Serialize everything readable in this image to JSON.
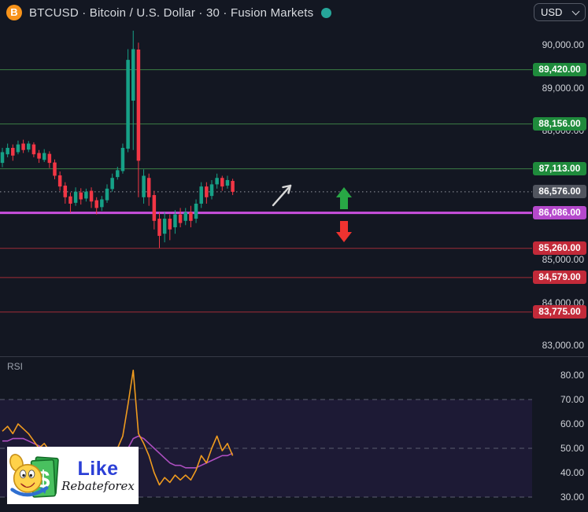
{
  "header": {
    "title": "BTCUSD · Bitcoin / U.S. Dollar · 30 · Fusion Markets",
    "symbol_icon": "bitcoin-icon",
    "symbol_icon_glyph": "B",
    "status_dot_color": "#26a69a",
    "currency_selector": {
      "value": "USD",
      "icon": "chevron-down-icon"
    }
  },
  "watermark": {
    "title": "Like",
    "subtitle": "Rebateforex"
  },
  "colors": {
    "background": "#131722",
    "pane_divider": "#363a46",
    "up_candle": "#16a187",
    "down_candle": "#f23645",
    "current_price_badge": "#51555f",
    "dotted_price_line": "#9598a1",
    "rsi_band_fill": "rgba(130,70,255,0.09)",
    "rsi_guide_line": "#5b5f70"
  },
  "chart_data": [
    {
      "type": "candlestick",
      "name": "BTCUSD 30m with support/resistance levels",
      "ylim": [
        82750,
        90470
      ],
      "grid": false,
      "price_axis": [
        {
          "label": "90,000.00",
          "value": 90000
        },
        {
          "label": "89,000.00",
          "value": 89000
        },
        {
          "label": "88,000.00",
          "value": 88000
        },
        {
          "label": "85,000.00",
          "value": 85000
        },
        {
          "label": "84,000.00",
          "value": 84000
        },
        {
          "label": "83,000.00",
          "value": 83000
        }
      ],
      "current_price": {
        "label": "86,576.00",
        "value": 86576,
        "badge_color": "#51555f",
        "line_style": "dotted"
      },
      "levels": [
        {
          "label": "89,420.00",
          "value": 89420,
          "kind": "resistance",
          "badge_color": "#1f8b3c",
          "line_color": "#3c7d44",
          "line_width": 1
        },
        {
          "label": "88,156.00",
          "value": 88156,
          "kind": "resistance",
          "badge_color": "#1f8b3c",
          "line_color": "#3c7d44",
          "line_width": 1
        },
        {
          "label": "87,113.00",
          "value": 87113,
          "kind": "resistance",
          "badge_color": "#1f8b3c",
          "line_color": "#3c7d44",
          "line_width": 1
        },
        {
          "label": "86,086.00",
          "value": 86086,
          "kind": "pivot",
          "badge_color": "#b549cc",
          "line_color": "#c94fdd",
          "line_width": 3
        },
        {
          "label": "85,260.00",
          "value": 85260,
          "kind": "support",
          "badge_color": "#c22a39",
          "line_color": "#a02d37",
          "line_width": 1
        },
        {
          "label": "84,579.00",
          "value": 84579,
          "kind": "support",
          "badge_color": "#c22a39",
          "line_color": "#a02d37",
          "line_width": 1
        },
        {
          "label": "83,775.00",
          "value": 83775,
          "kind": "support",
          "badge_color": "#c22a39",
          "line_color": "#a02d37",
          "line_width": 1
        }
      ],
      "candles_ohlc": [
        [
          87250,
          87600,
          87150,
          87500
        ],
        [
          87450,
          87700,
          87380,
          87600
        ],
        [
          87600,
          87680,
          87300,
          87420
        ],
        [
          87500,
          87770,
          87450,
          87680
        ],
        [
          87700,
          87790,
          87480,
          87550
        ],
        [
          87560,
          87760,
          87500,
          87700
        ],
        [
          87680,
          87730,
          87380,
          87450
        ],
        [
          87480,
          87550,
          87250,
          87350
        ],
        [
          87320,
          87570,
          87270,
          87480
        ],
        [
          87460,
          87520,
          87130,
          87250
        ],
        [
          87260,
          87330,
          86870,
          86950
        ],
        [
          86960,
          87050,
          86600,
          86700
        ],
        [
          86720,
          86800,
          86300,
          86450
        ],
        [
          86470,
          86560,
          86090,
          86300
        ],
        [
          86320,
          86680,
          86250,
          86580
        ],
        [
          86560,
          86660,
          86280,
          86400
        ],
        [
          86420,
          86650,
          86350,
          86580
        ],
        [
          86600,
          86680,
          86200,
          86350
        ],
        [
          86380,
          86450,
          86050,
          86200
        ],
        [
          86220,
          86480,
          86130,
          86400
        ],
        [
          86380,
          86750,
          86320,
          86650
        ],
        [
          86640,
          87000,
          86580,
          86900
        ],
        [
          86920,
          87160,
          86860,
          87080
        ],
        [
          87060,
          87700,
          87000,
          87600
        ],
        [
          87580,
          89900,
          87500,
          89650
        ],
        [
          88700,
          90330,
          87550,
          89900
        ],
        [
          89890,
          90050,
          86450,
          87300
        ],
        [
          86450,
          87100,
          86300,
          86950
        ],
        [
          86900,
          87000,
          86250,
          86450
        ],
        [
          86500,
          86600,
          85700,
          85900
        ],
        [
          85950,
          86100,
          85270,
          85550
        ],
        [
          85600,
          86100,
          85400,
          85950
        ],
        [
          85950,
          86050,
          85450,
          85700
        ],
        [
          85750,
          86150,
          85600,
          86050
        ],
        [
          86050,
          86200,
          85750,
          85850
        ],
        [
          85900,
          86200,
          85800,
          86100
        ],
        [
          86100,
          86250,
          85750,
          85900
        ],
        [
          85950,
          86400,
          85850,
          86300
        ],
        [
          86300,
          86800,
          86200,
          86700
        ],
        [
          86700,
          86800,
          86300,
          86450
        ],
        [
          86480,
          86850,
          86400,
          86750
        ],
        [
          86750,
          87000,
          86650,
          86900
        ],
        [
          86900,
          86950,
          86600,
          86700
        ],
        [
          86720,
          86950,
          86650,
          86850
        ],
        [
          86830,
          86880,
          86500,
          86576
        ]
      ],
      "annotations": [
        {
          "name": "trend-arrow",
          "shape": "diagonal-arrow-up-right",
          "color": "#d9d9d9"
        },
        {
          "name": "up-arrow",
          "shape": "block-arrow-up",
          "color": "#28a745"
        },
        {
          "name": "down-arrow",
          "shape": "block-arrow-down",
          "color": "#ee3330"
        }
      ]
    },
    {
      "type": "line",
      "title": "RSI",
      "ylim": [
        25,
        85
      ],
      "axis": [
        {
          "label": "80.00",
          "value": 80
        },
        {
          "label": "70.00",
          "value": 70
        },
        {
          "label": "60.00",
          "value": 60
        },
        {
          "label": "50.00",
          "value": 50
        },
        {
          "label": "40.00",
          "value": 40
        },
        {
          "label": "30.00",
          "value": 30
        }
      ],
      "guide_levels": [
        70,
        50,
        30
      ],
      "band": [
        30,
        70
      ],
      "series": [
        {
          "name": "RSI",
          "color": "#ef9b1f",
          "values": [
            57,
            59,
            56,
            60,
            58,
            56,
            53,
            50,
            52,
            49,
            45,
            41,
            38,
            36,
            40,
            37,
            39,
            36,
            34,
            37,
            42,
            47,
            50,
            55,
            68,
            82,
            56,
            52,
            47,
            40,
            35,
            38,
            36,
            39,
            37,
            39,
            37,
            41,
            47,
            44,
            50,
            55,
            49,
            52,
            47
          ]
        },
        {
          "name": "RSI-based MA",
          "color": "#ad4fc0",
          "values": [
            53,
            53,
            54,
            54,
            54,
            53,
            52,
            51,
            50,
            48,
            46,
            45,
            43,
            42,
            41,
            40,
            39,
            39,
            38,
            38,
            39,
            41,
            43,
            46,
            50,
            54,
            55,
            54,
            52,
            50,
            48,
            46,
            44,
            43,
            43,
            42,
            42,
            42,
            43,
            44,
            45,
            46,
            47,
            47,
            48
          ]
        }
      ]
    }
  ]
}
